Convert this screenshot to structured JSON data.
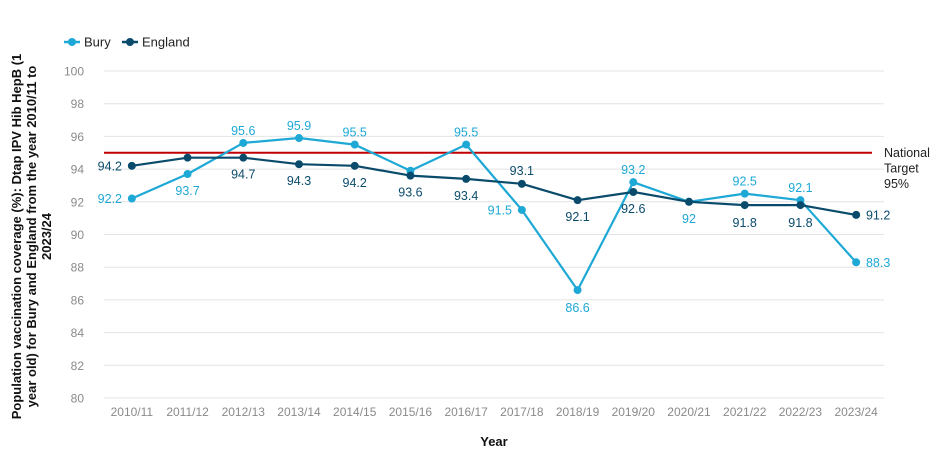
{
  "chart_data": {
    "type": "line",
    "title": "",
    "xlabel": "Year",
    "ylabel": "Population vaccination coverage (%): Dtap IPV Hib HepB (1 year old) for Bury and England from the year 2010/11 to 2023/24",
    "ylim": [
      80,
      100
    ],
    "yticks": [
      80,
      82,
      84,
      86,
      88,
      90,
      92,
      94,
      96,
      98,
      100
    ],
    "grid": true,
    "legend_position": "top-left",
    "categories": [
      "2010/11",
      "2011/12",
      "2012/13",
      "2013/14",
      "2014/15",
      "2015/16",
      "2016/17",
      "2017/18",
      "2018/19",
      "2019/20",
      "2020/21",
      "2021/22",
      "2022/23",
      "2023/24"
    ],
    "series": [
      {
        "name": "Bury",
        "color": "#1ea8d6",
        "values": [
          92.2,
          93.7,
          95.6,
          95.9,
          95.5,
          93.9,
          95.5,
          91.5,
          86.6,
          93.2,
          92,
          92.5,
          92.1,
          88.3
        ],
        "labels": [
          "92.2",
          "93.7",
          "95.6",
          "95.9",
          "95.5",
          "",
          "95.5",
          "91.5",
          "86.6",
          "93.2",
          "92",
          "92.5",
          "92.1",
          "88.3"
        ]
      },
      {
        "name": "England",
        "color": "#0a4b6b",
        "values": [
          94.2,
          94.7,
          94.7,
          94.3,
          94.2,
          93.6,
          93.4,
          93.1,
          92.1,
          92.6,
          92,
          91.8,
          91.8,
          91.2
        ],
        "labels": [
          "94.2",
          "",
          "94.7",
          "94.3",
          "94.2",
          "93.6",
          "93.4",
          "93.1",
          "92.1",
          "92.6",
          "",
          "91.8",
          "91.8",
          "91.2"
        ]
      }
    ],
    "reference_line": {
      "value": 95,
      "color": "#c00000",
      "label_lines": [
        "National",
        "Target",
        "95%"
      ]
    }
  }
}
